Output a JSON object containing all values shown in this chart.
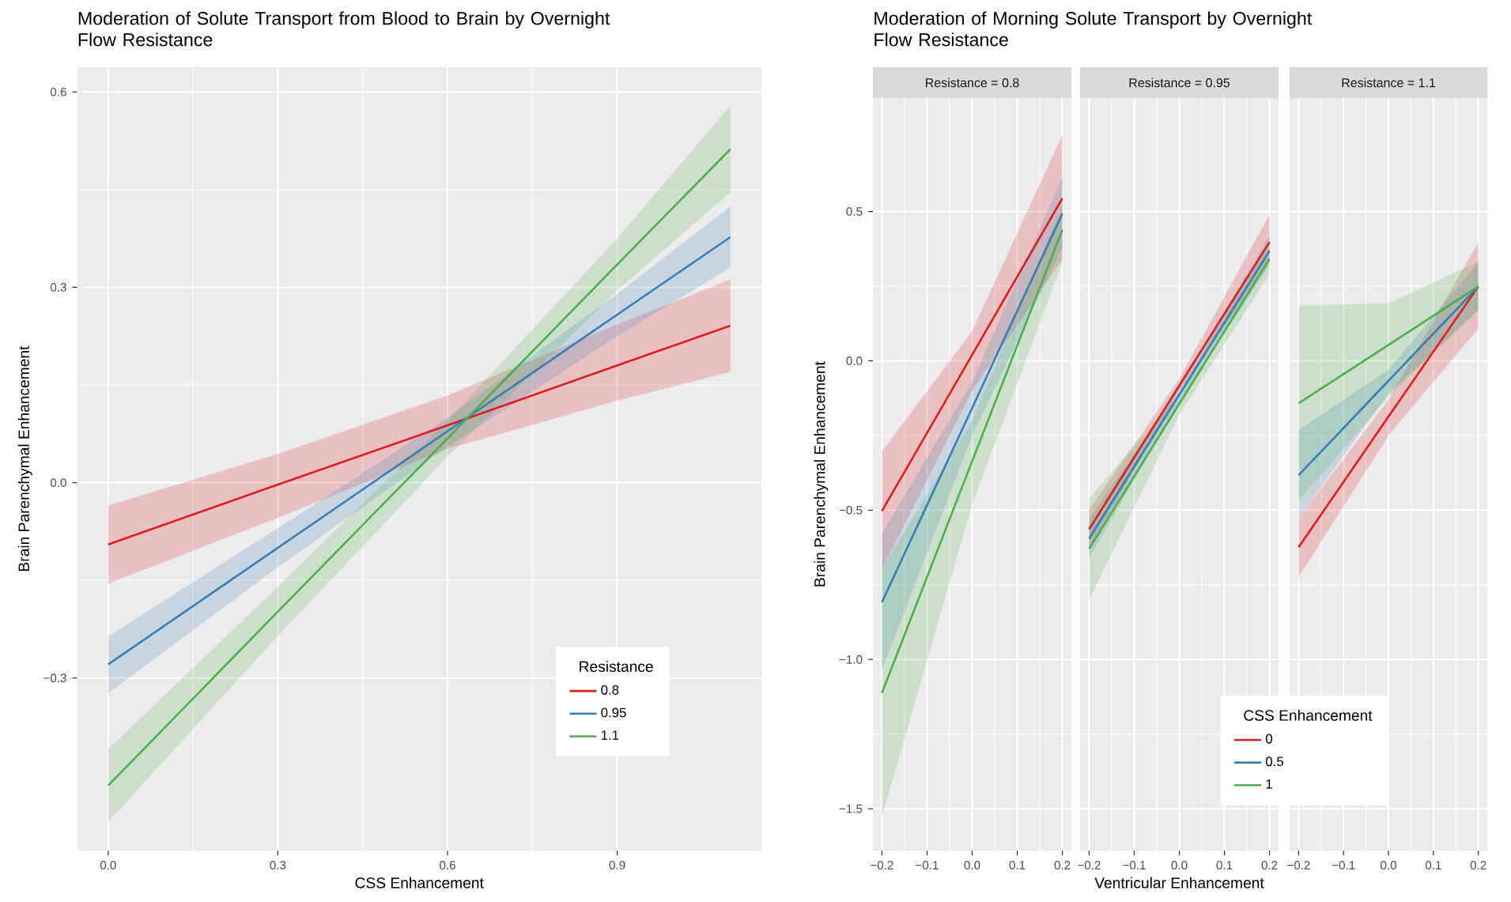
{
  "chart_data": [
    {
      "type": "line",
      "title": "Moderation of Solute Transport from Blood to Brain by Overnight Flow Resistance",
      "xlabel": "CSS Enhancement",
      "ylabel": "Brain Parenchymal Enhancement",
      "legend_title": "Resistance",
      "legend": "bottom right",
      "grid": true,
      "x": [
        0,
        0.3,
        0.6,
        0.9,
        1.1
      ],
      "xlim": [
        -0.055,
        1.155
      ],
      "ylim": [
        -0.565,
        0.638
      ],
      "xticks": [
        {
          "value": 0,
          "label": "0.0"
        },
        0.3,
        0.6,
        0.9
      ],
      "yticks": [
        {
          "value": -0.3,
          "label": "−0.3"
        },
        {
          "value": 0,
          "label": "0.0"
        },
        0.3,
        0.6
      ],
      "series": [
        {
          "name": "0.8",
          "color": "#e41a1c",
          "values": [
            -0.095,
            -0.003,
            0.088,
            0.18,
            0.241
          ],
          "lower": [
            -0.155,
            -0.054,
            0.052,
            0.126,
            0.17
          ],
          "upper": [
            -0.035,
            0.044,
            0.134,
            0.243,
            0.312
          ]
        },
        {
          "name": "0.95",
          "color": "#377eb8",
          "values": [
            -0.279,
            -0.1,
            0.079,
            0.258,
            0.377
          ],
          "lower": [
            -0.323,
            -0.13,
            0.055,
            0.225,
            0.33
          ],
          "upper": [
            -0.236,
            -0.07,
            0.1,
            0.29,
            0.424
          ]
        },
        {
          "name": "1.1",
          "color": "#4daf4a",
          "values": [
            -0.465,
            -0.198,
            0.068,
            0.335,
            0.512
          ],
          "lower": [
            -0.521,
            -0.235,
            0.04,
            0.295,
            0.446
          ],
          "upper": [
            -0.409,
            -0.16,
            0.095,
            0.375,
            0.579
          ]
        }
      ]
    },
    {
      "type": "line",
      "title": "Moderation of Morning Solute Transport by Overnight Flow Resistance",
      "subtitle": "Resistance = 0.8",
      "ylabel": "Brain Parenchymal Enhancement",
      "grid": true,
      "x": [
        -0.2,
        0,
        0.2
      ],
      "xlim": [
        -0.22,
        0.22
      ],
      "ylim": [
        -1.64,
        0.88
      ],
      "xticks": [
        {
          "value": -0.2,
          "label": "−0.2"
        },
        {
          "value": -0.1,
          "label": "−0.1"
        },
        {
          "value": 0,
          "label": "0.0"
        },
        0.1,
        0.2
      ],
      "yticks": [
        {
          "value": -1.5,
          "label": "−1.5"
        },
        {
          "value": -1,
          "label": "−1.0"
        },
        {
          "value": -0.5,
          "label": "−0.5"
        },
        {
          "value": 0,
          "label": "0.0"
        },
        0.5
      ],
      "series": [
        {
          "color": "#e41a1c",
          "values": [
            -0.503,
            0.02,
            0.544
          ],
          "lower": [
            -0.697,
            -0.1,
            0.34
          ],
          "upper": [
            -0.303,
            0.1,
            0.756
          ]
        },
        {
          "color": "#377eb8",
          "values": [
            -0.808,
            -0.158,
            0.493
          ],
          "lower": [
            -1.036,
            -0.25,
            0.38
          ],
          "upper": [
            -0.578,
            -0.07,
            0.612
          ]
        },
        {
          "color": "#4daf4a",
          "values": [
            -1.112,
            -0.336,
            0.439
          ],
          "lower": [
            -1.527,
            -0.48,
            0.33
          ],
          "upper": [
            -0.697,
            -0.2,
            0.52
          ]
        }
      ]
    },
    {
      "type": "line",
      "subtitle": "Resistance = 0.95",
      "xlabel": "Ventricular Enhancement",
      "grid": true,
      "tick_labels": "x",
      "x": [
        -0.2,
        0,
        0.2
      ],
      "xlim": [
        -0.22,
        0.22
      ],
      "ylim": [
        -1.64,
        0.88
      ],
      "xticks": [
        {
          "value": -0.2,
          "label": "−0.2"
        },
        {
          "value": -0.1,
          "label": "−0.1"
        },
        {
          "value": 0,
          "label": "0.0"
        },
        0.1,
        0.2
      ],
      "yticks": [
        -1.5,
        -1,
        -0.5,
        0,
        0.5
      ],
      "series": [
        {
          "color": "#e41a1c",
          "values": [
            -0.564,
            -0.083,
            0.398
          ],
          "lower": [
            -0.63,
            -0.1,
            0.33
          ],
          "upper": [
            -0.5,
            -0.06,
            0.49
          ]
        },
        {
          "color": "#377eb8",
          "values": [
            -0.595,
            -0.113,
            0.368
          ],
          "lower": [
            -0.66,
            -0.14,
            0.32
          ],
          "upper": [
            -0.53,
            -0.09,
            0.42
          ]
        },
        {
          "color": "#4daf4a",
          "values": [
            -0.629,
            -0.144,
            0.341
          ],
          "lower": [
            -0.8,
            -0.18,
            0.29
          ],
          "upper": [
            -0.46,
            -0.11,
            0.4
          ]
        }
      ]
    },
    {
      "type": "line",
      "subtitle": "Resistance = 1.1",
      "legend_title": "CSS Enhancement",
      "legend": "bottom left",
      "grid": true,
      "tick_labels": "x",
      "x": [
        -0.2,
        0,
        0.2
      ],
      "xlim": [
        -0.22,
        0.22
      ],
      "ylim": [
        -1.64,
        0.88
      ],
      "xticks": [
        {
          "value": -0.2,
          "label": "−0.2"
        },
        {
          "value": -0.1,
          "label": "−0.1"
        },
        {
          "value": 0,
          "label": "0.0"
        },
        0.1,
        0.2
      ],
      "yticks": [
        -1.5,
        -1,
        -0.5,
        0,
        0.5
      ],
      "series": [
        {
          "name": "0",
          "color": "#e41a1c",
          "values": [
            -0.624,
            -0.187,
            0.249
          ],
          "lower": [
            -0.725,
            -0.25,
            0.108
          ],
          "upper": [
            -0.527,
            -0.13,
            0.397
          ]
        },
        {
          "name": "0.5",
          "color": "#377eb8",
          "values": [
            -0.383,
            -0.067,
            0.249
          ],
          "lower": [
            -0.527,
            -0.11,
            0.17
          ],
          "upper": [
            -0.232,
            -0.03,
            0.33
          ]
        },
        {
          "name": "1",
          "color": "#4daf4a",
          "values": [
            -0.142,
            0.053,
            0.249
          ],
          "lower": [
            -0.468,
            -0.12,
            0.17
          ],
          "upper": [
            0.185,
            0.193,
            0.33
          ]
        }
      ]
    }
  ]
}
